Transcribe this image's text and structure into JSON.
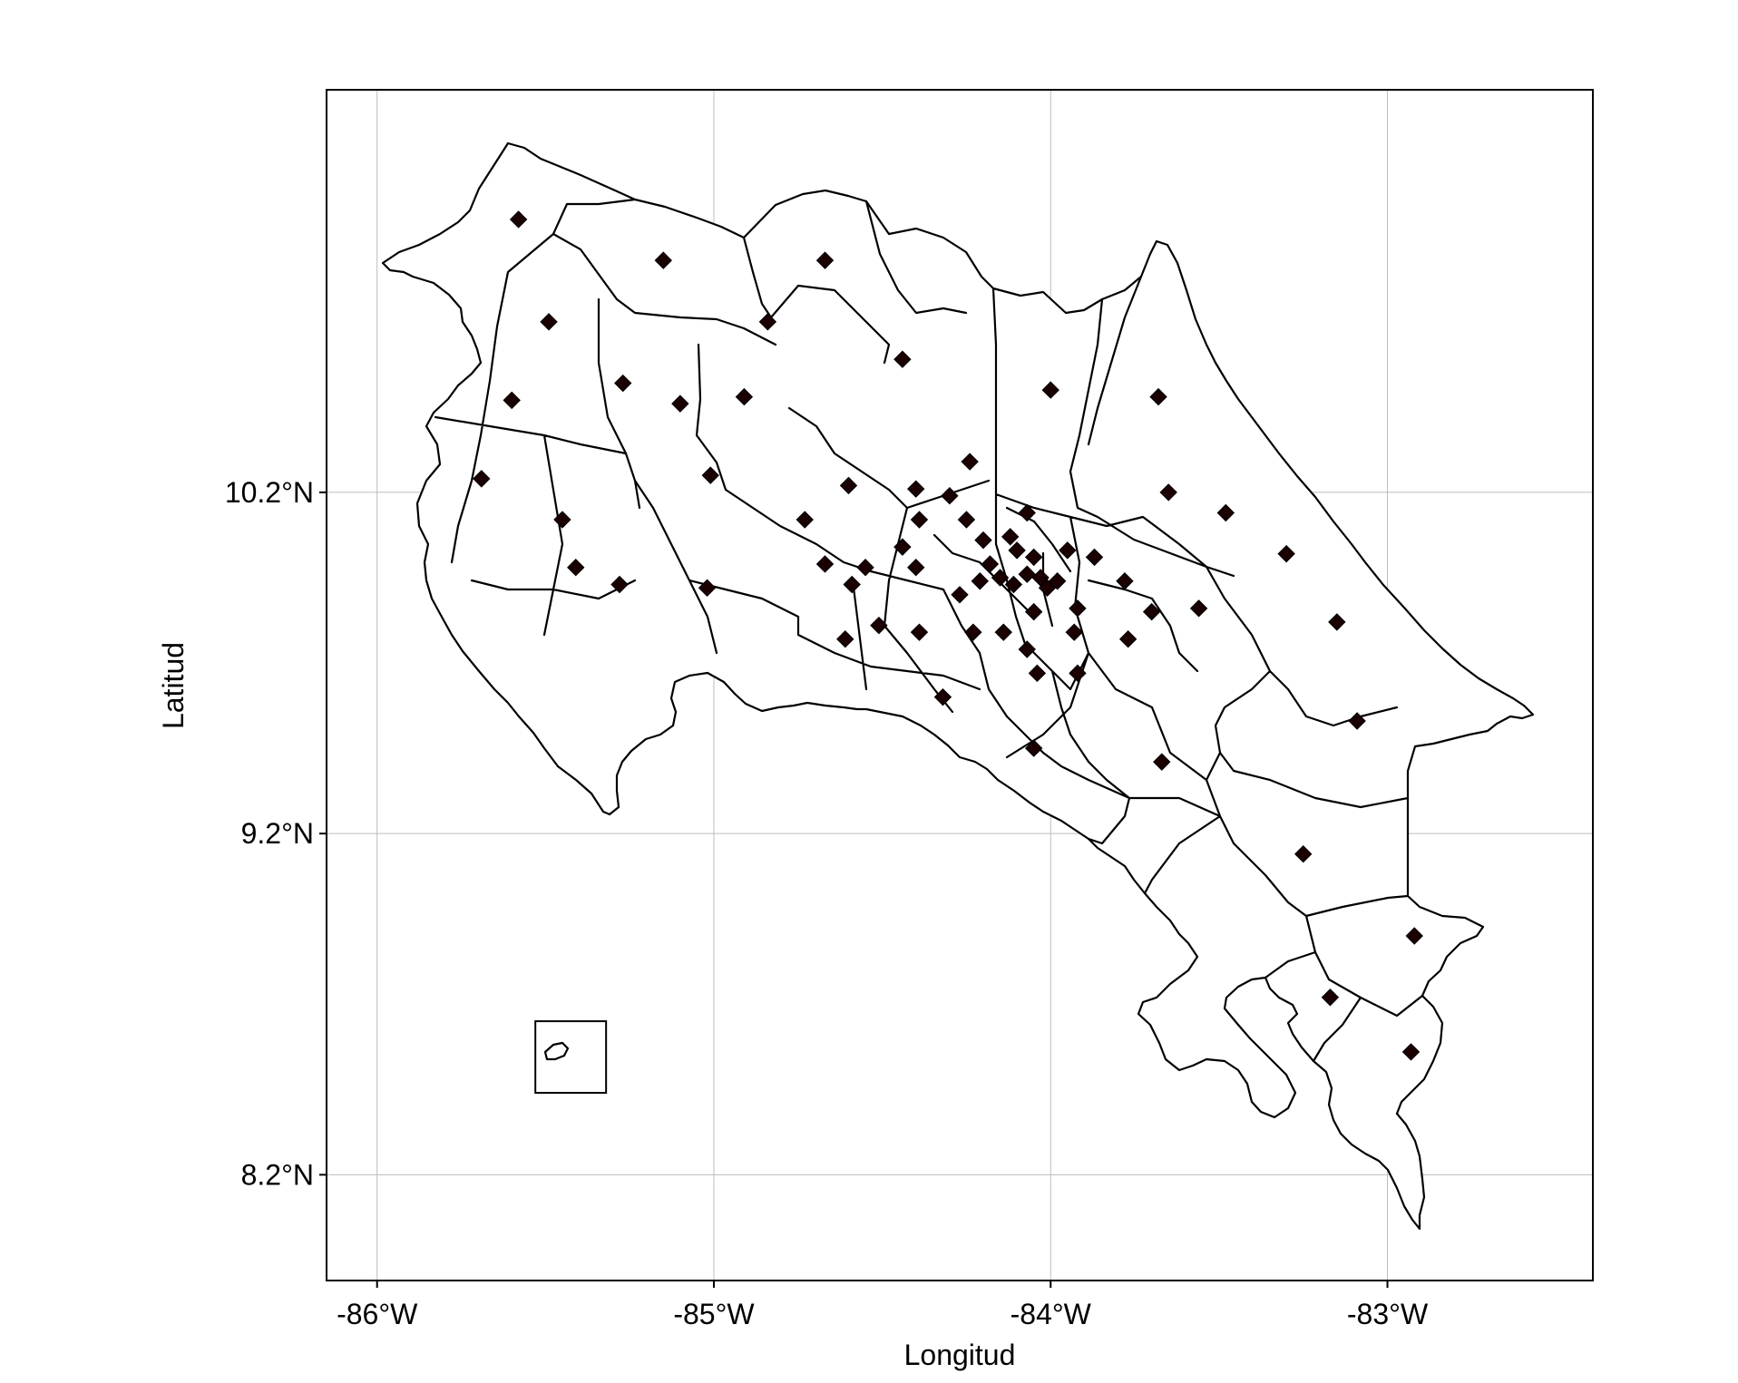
{
  "map": {
    "xlabel": "Longitud",
    "ylabel": "Latitud",
    "x_ticks": [
      {
        "value": -86,
        "label": "-86°W"
      },
      {
        "value": -85,
        "label": "-85°W"
      },
      {
        "value": -84,
        "label": "-84°W"
      },
      {
        "value": -83,
        "label": "-83°W"
      }
    ],
    "y_ticks": [
      {
        "value": 10.2,
        "label": "10.2°N"
      },
      {
        "value": 9.2,
        "label": "9.2°N"
      },
      {
        "value": 8.2,
        "label": "8.2°N"
      }
    ],
    "xlim": [
      -86.15,
      -82.39
    ],
    "ylim": [
      7.89,
      11.38
    ],
    "grid": true,
    "marker": "diamond",
    "marker_color": "#1a0000",
    "outline_color": "#000000",
    "centroids": [
      [
        -85.58,
        11.0
      ],
      [
        -85.15,
        10.88
      ],
      [
        -84.67,
        10.88
      ],
      [
        -85.49,
        10.7
      ],
      [
        -84.84,
        10.7
      ],
      [
        -84.44,
        10.59
      ],
      [
        -85.27,
        10.52
      ],
      [
        -85.6,
        10.47
      ],
      [
        -85.1,
        10.46
      ],
      [
        -84.91,
        10.48
      ],
      [
        -84.0,
        10.5
      ],
      [
        -83.68,
        10.48
      ],
      [
        -85.69,
        10.24
      ],
      [
        -85.01,
        10.25
      ],
      [
        -84.24,
        10.29
      ],
      [
        -84.4,
        10.21
      ],
      [
        -84.6,
        10.22
      ],
      [
        -84.3,
        10.19
      ],
      [
        -83.65,
        10.2
      ],
      [
        -83.48,
        10.14
      ],
      [
        -84.73,
        10.12
      ],
      [
        -84.39,
        10.12
      ],
      [
        -84.25,
        10.12
      ],
      [
        -84.07,
        10.14
      ],
      [
        -85.45,
        10.12
      ],
      [
        -84.44,
        10.04
      ],
      [
        -84.2,
        10.06
      ],
      [
        -84.12,
        10.07
      ],
      [
        -83.95,
        10.03
      ],
      [
        -83.87,
        10.01
      ],
      [
        -83.3,
        10.02
      ],
      [
        -84.67,
        9.99
      ],
      [
        -84.55,
        9.98
      ],
      [
        -84.4,
        9.98
      ],
      [
        -84.18,
        9.99
      ],
      [
        -84.1,
        10.03
      ],
      [
        -84.05,
        10.01
      ],
      [
        -85.41,
        9.98
      ],
      [
        -84.15,
        9.95
      ],
      [
        -84.07,
        9.96
      ],
      [
        -84.03,
        9.95
      ],
      [
        -83.98,
        9.94
      ],
      [
        -83.78,
        9.94
      ],
      [
        -84.59,
        9.93
      ],
      [
        -84.21,
        9.94
      ],
      [
        -84.11,
        9.93
      ],
      [
        -84.01,
        9.92
      ],
      [
        -85.28,
        9.93
      ],
      [
        -85.02,
        9.92
      ],
      [
        -84.27,
        9.9
      ],
      [
        -83.92,
        9.86
      ],
      [
        -83.7,
        9.85
      ],
      [
        -83.56,
        9.86
      ],
      [
        -84.05,
        9.85
      ],
      [
        -84.51,
        9.81
      ],
      [
        -84.39,
        9.79
      ],
      [
        -84.23,
        9.79
      ],
      [
        -84.14,
        9.79
      ],
      [
        -83.93,
        9.79
      ],
      [
        -84.61,
        9.77
      ],
      [
        -83.77,
        9.77
      ],
      [
        -83.15,
        9.82
      ],
      [
        -84.07,
        9.74
      ],
      [
        -84.04,
        9.67
      ],
      [
        -83.92,
        9.67
      ],
      [
        -84.32,
        9.6
      ],
      [
        -83.09,
        9.53
      ],
      [
        -84.05,
        9.45
      ],
      [
        -83.67,
        9.41
      ],
      [
        -83.25,
        9.14
      ],
      [
        -82.92,
        8.9
      ],
      [
        -83.17,
        8.72
      ],
      [
        -82.93,
        8.56
      ]
    ],
    "inset_box": {
      "x0": -85.53,
      "y0": 8.44,
      "x1": -85.32,
      "y1": 8.65
    }
  }
}
